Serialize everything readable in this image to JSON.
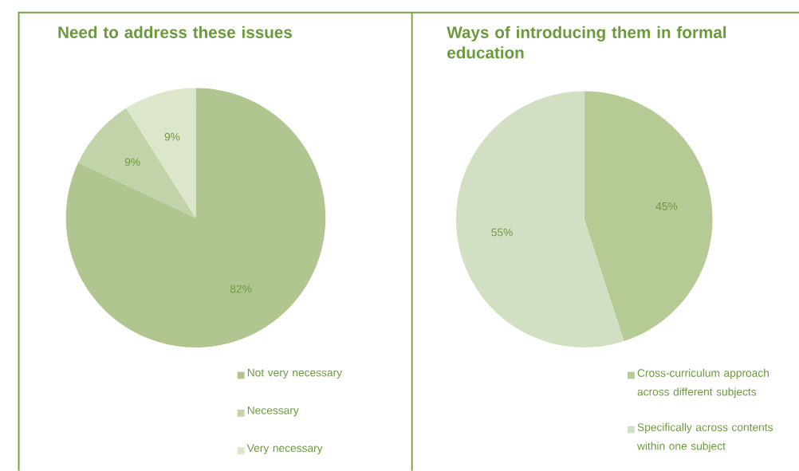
{
  "chart_data": [
    {
      "type": "pie",
      "title": "Need to address these issues",
      "categories": [
        "Not very necessary",
        "Necessary",
        "Very necessary"
      ],
      "values": [
        82,
        9,
        9
      ],
      "colors": [
        "#b0c590",
        "#c3d3a9",
        "#dce6cb"
      ],
      "value_labels": [
        "82%",
        "9%",
        "9%"
      ],
      "legend": "bottom right"
    },
    {
      "type": "pie",
      "title": "Ways of introducing them in formal education",
      "categories": [
        "Cross-curriculum approach across different subjects",
        "Specifically across contents within one subject"
      ],
      "values": [
        45,
        55
      ],
      "colors": [
        "#b6ca96",
        "#d3dfc2"
      ],
      "value_labels": [
        "45%",
        "55%"
      ],
      "legend": "bottom right"
    }
  ]
}
